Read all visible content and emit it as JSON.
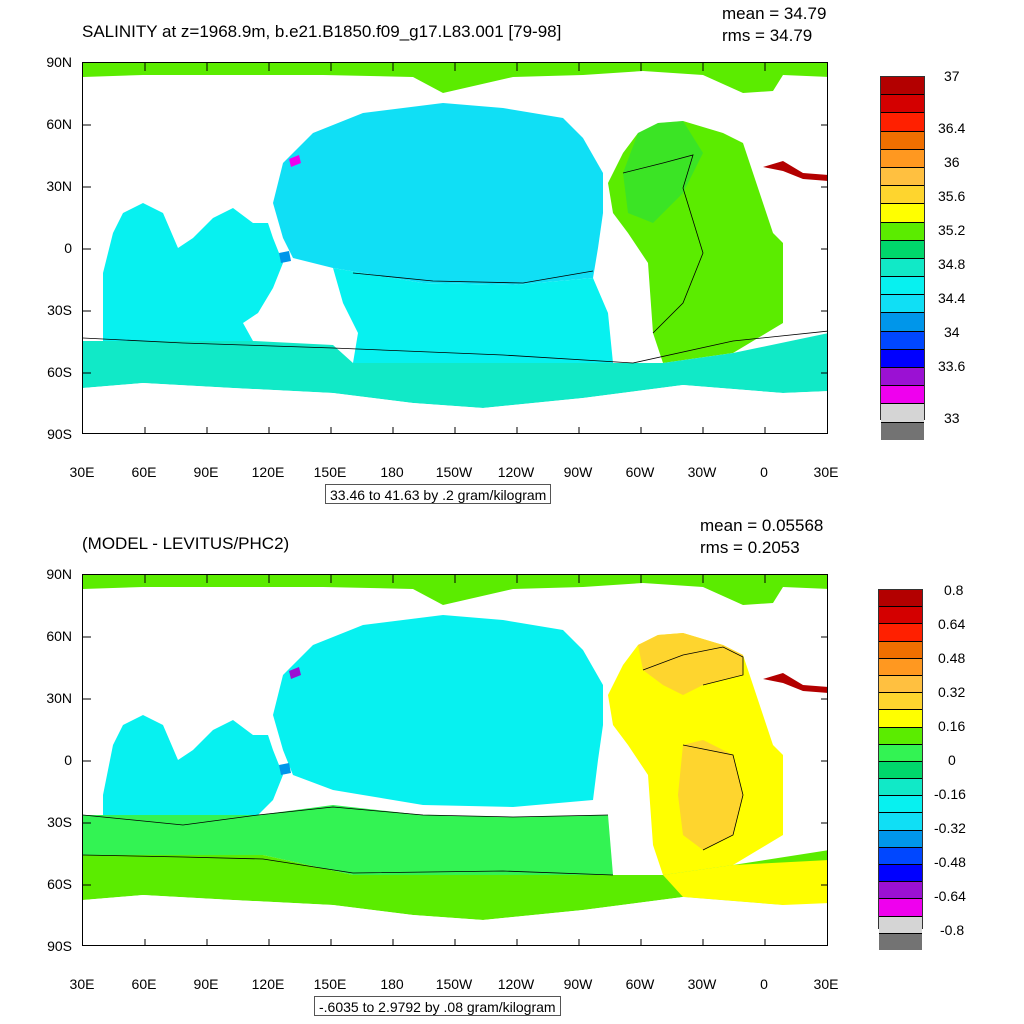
{
  "panels": [
    {
      "title": "SALINITY at z=1968.9m, b.e21.B1850.f09_g17.L83.001 [79-98]",
      "mean_text": "mean = 34.79",
      "rms_text": "rms = 34.79",
      "range_text": "33.46 to 41.63 by .2 gram/kilogram",
      "colorbar_labels": [
        "37",
        "36.4",
        "36",
        "35.6",
        "35.2",
        "34.8",
        "34.4",
        "34",
        "33.6",
        "33"
      ],
      "colorbar_colors": [
        "#b30000",
        "#d40000",
        "#ff2000",
        "#f06f00",
        "#ff9820",
        "#ffc040",
        "#fed52e",
        "#ffff00",
        "#5bec00",
        "#00d76b",
        "#11e9c7",
        "#07f1f0",
        "#10dff5",
        "#0096ea",
        "#0047ff",
        "#0000ff",
        "#9b11d3",
        "#ef00ee",
        "#d5d5d5",
        "#737373"
      ]
    },
    {
      "title": "(MODEL - LEVITUS/PHC2)",
      "mean_text": "mean = 0.05568",
      "rms_text": "rms = 0.2053",
      "range_text": "-.6035 to 2.9792 by .08 gram/kilogram",
      "colorbar_labels": [
        "0.8",
        "0.64",
        "0.48",
        "0.32",
        "0.16",
        "0",
        "-0.16",
        "-0.32",
        "-0.48",
        "-0.64",
        "-0.8"
      ],
      "colorbar_colors": [
        "#b30000",
        "#d40000",
        "#ff2000",
        "#f06f00",
        "#ff9820",
        "#ffc040",
        "#fed52e",
        "#ffff00",
        "#5bec00",
        "#33f353",
        "#00d76b",
        "#11e9c7",
        "#07f1f0",
        "#10dff5",
        "#0096ea",
        "#0047ff",
        "#0000ff",
        "#9b11d3",
        "#ef00ee",
        "#d5d5d5",
        "#737373"
      ]
    }
  ],
  "axes": {
    "y_labels": [
      "90N",
      "60N",
      "30N",
      "0",
      "30S",
      "60S",
      "90S"
    ],
    "x_labels": [
      "30E",
      "60E",
      "90E",
      "120E",
      "150E",
      "180",
      "150W",
      "120W",
      "90W",
      "60W",
      "30W",
      "0",
      "30E"
    ]
  }
}
